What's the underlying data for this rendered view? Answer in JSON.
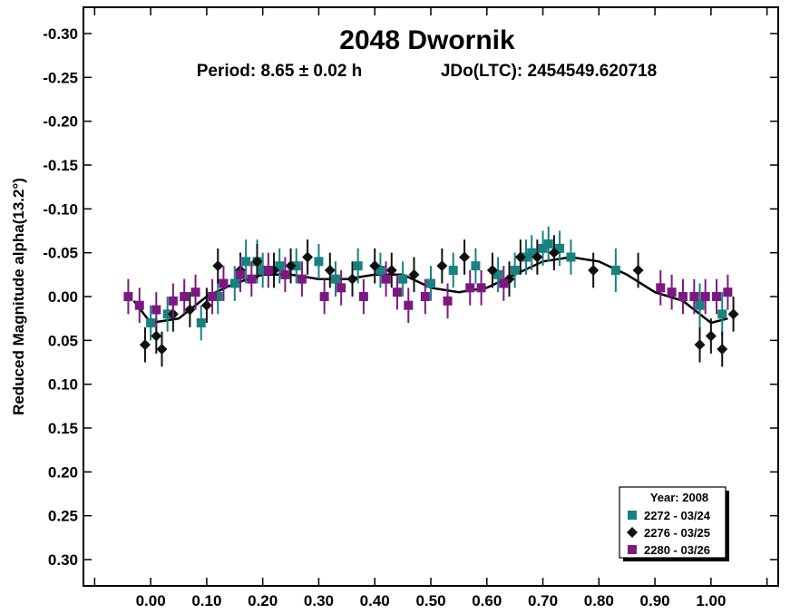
{
  "chart_data": {
    "type": "scatter",
    "title": "2048 Dwornik",
    "subtitle_period": "Period: 8.65 ± 0.02 h",
    "subtitle_epoch": "JDo(LTC): 2454549.620718",
    "xlabel": "",
    "ylabel": "Reduced Magnitude alpha(13.2°)",
    "xlim": [
      -0.12,
      1.12
    ],
    "ylim": [
      -0.33,
      0.33
    ],
    "y_inverted": true,
    "x_ticks": [
      0.0,
      0.1,
      0.2,
      0.3,
      0.4,
      0.5,
      0.6,
      0.7,
      0.8,
      0.9,
      1.0
    ],
    "x_tick_labels": [
      "0.00",
      "0.10",
      "0.20",
      "0.30",
      "0.40",
      "0.50",
      "0.60",
      "0.70",
      "0.80",
      "0.90",
      "1.00"
    ],
    "y_ticks": [
      -0.3,
      -0.25,
      -0.2,
      -0.15,
      -0.1,
      -0.05,
      0.0,
      0.05,
      0.1,
      0.15,
      0.2,
      0.25,
      0.3
    ],
    "y_tick_labels": [
      "-0.30",
      "-0.25",
      "-0.20",
      "-0.15",
      "-0.10",
      "-0.05",
      "0.00",
      "0.05",
      "0.10",
      "0.15",
      "0.20",
      "0.25",
      "0.30"
    ],
    "legend": {
      "title": "Year: 2008",
      "placement": "bottom-right",
      "entries": [
        {
          "label": "2272 - 03/24",
          "color": "#1a8080",
          "marker": "square"
        },
        {
          "label": "2276 - 03/25",
          "color": "#111111",
          "marker": "diamond"
        },
        {
          "label": "2280 - 03/26",
          "color": "#7a1a80",
          "marker": "square"
        }
      ]
    },
    "fit_curve": {
      "x": [
        -0.03,
        0.0,
        0.05,
        0.1,
        0.15,
        0.2,
        0.25,
        0.3,
        0.35,
        0.4,
        0.45,
        0.5,
        0.55,
        0.6,
        0.65,
        0.7,
        0.75,
        0.8,
        0.85,
        0.9,
        0.95,
        1.0,
        1.03
      ],
      "y": [
        0.005,
        0.03,
        0.025,
        0.0,
        -0.015,
        -0.025,
        -0.025,
        -0.02,
        -0.02,
        -0.025,
        -0.025,
        -0.01,
        -0.005,
        -0.01,
        -0.025,
        -0.04,
        -0.045,
        -0.04,
        -0.025,
        -0.005,
        0.005,
        0.03,
        0.025
      ]
    },
    "series": [
      {
        "name": "2272 - 03/24",
        "marker": "square",
        "color": "#1a8080",
        "x": [
          0.0,
          0.03,
          0.09,
          0.12,
          0.15,
          0.17,
          0.19,
          0.2,
          0.23,
          0.26,
          0.3,
          0.33,
          0.37,
          0.41,
          0.45,
          0.5,
          0.54,
          0.58,
          0.62,
          0.65,
          0.67,
          0.68,
          0.7,
          0.71,
          0.73,
          0.75,
          0.83,
          0.98,
          1.02
        ],
        "y": [
          0.03,
          0.02,
          0.03,
          0.0,
          -0.015,
          -0.04,
          -0.04,
          -0.03,
          -0.035,
          -0.035,
          -0.04,
          -0.02,
          -0.035,
          -0.03,
          -0.02,
          -0.015,
          -0.03,
          -0.035,
          -0.025,
          -0.03,
          -0.045,
          -0.05,
          -0.055,
          -0.06,
          -0.055,
          -0.045,
          -0.03,
          0.01,
          0.02
        ],
        "err": [
          0.02,
          0.02,
          0.02,
          0.02,
          0.02,
          0.025,
          0.025,
          0.02,
          0.02,
          0.02,
          0.02,
          0.02,
          0.02,
          0.02,
          0.02,
          0.02,
          0.02,
          0.02,
          0.02,
          0.02,
          0.02,
          0.02,
          0.02,
          0.02,
          0.02,
          0.02,
          0.025,
          0.025,
          0.025
        ]
      },
      {
        "name": "2276 - 03/25",
        "marker": "diamond",
        "color": "#111111",
        "x": [
          -0.01,
          0.01,
          0.02,
          0.04,
          0.07,
          0.1,
          0.12,
          0.16,
          0.19,
          0.22,
          0.25,
          0.28,
          0.32,
          0.36,
          0.4,
          0.43,
          0.47,
          0.52,
          0.56,
          0.61,
          0.64,
          0.66,
          0.69,
          0.72,
          0.79,
          0.87,
          0.98,
          1.0,
          1.02,
          1.04
        ],
        "y": [
          0.055,
          0.045,
          0.06,
          0.02,
          0.015,
          0.01,
          -0.035,
          -0.03,
          -0.04,
          -0.03,
          -0.035,
          -0.045,
          -0.03,
          -0.02,
          -0.035,
          -0.03,
          -0.025,
          -0.035,
          -0.045,
          -0.03,
          -0.02,
          -0.045,
          -0.045,
          -0.05,
          -0.03,
          -0.03,
          0.055,
          0.045,
          0.06,
          0.02
        ],
        "err": [
          0.02,
          0.02,
          0.02,
          0.02,
          0.02,
          0.02,
          0.02,
          0.02,
          0.02,
          0.02,
          0.02,
          0.02,
          0.02,
          0.02,
          0.02,
          0.02,
          0.02,
          0.02,
          0.02,
          0.02,
          0.02,
          0.02,
          0.02,
          0.02,
          0.02,
          0.02,
          0.02,
          0.02,
          0.02,
          0.02
        ]
      },
      {
        "name": "2280 - 03/26",
        "marker": "square",
        "color": "#7a1a80",
        "x": [
          -0.04,
          -0.02,
          0.01,
          0.04,
          0.06,
          0.08,
          0.11,
          0.13,
          0.16,
          0.18,
          0.21,
          0.24,
          0.27,
          0.31,
          0.34,
          0.38,
          0.42,
          0.44,
          0.46,
          0.49,
          0.53,
          0.57,
          0.59,
          0.63,
          0.91,
          0.93,
          0.95,
          0.97,
          0.99,
          1.01,
          1.03
        ],
        "y": [
          0.0,
          0.01,
          0.015,
          0.005,
          0.0,
          -0.005,
          0.0,
          -0.015,
          -0.025,
          -0.02,
          -0.03,
          -0.025,
          -0.02,
          0.0,
          -0.01,
          0.0,
          -0.02,
          -0.005,
          0.01,
          0.0,
          0.005,
          -0.01,
          -0.01,
          -0.015,
          -0.01,
          -0.005,
          0.0,
          0.0,
          0.0,
          0.0,
          -0.005
        ],
        "err": [
          0.02,
          0.02,
          0.02,
          0.02,
          0.02,
          0.02,
          0.02,
          0.02,
          0.02,
          0.02,
          0.02,
          0.02,
          0.02,
          0.02,
          0.02,
          0.02,
          0.02,
          0.02,
          0.02,
          0.02,
          0.02,
          0.02,
          0.02,
          0.02,
          0.02,
          0.02,
          0.02,
          0.02,
          0.02,
          0.02,
          0.02
        ]
      }
    ]
  }
}
